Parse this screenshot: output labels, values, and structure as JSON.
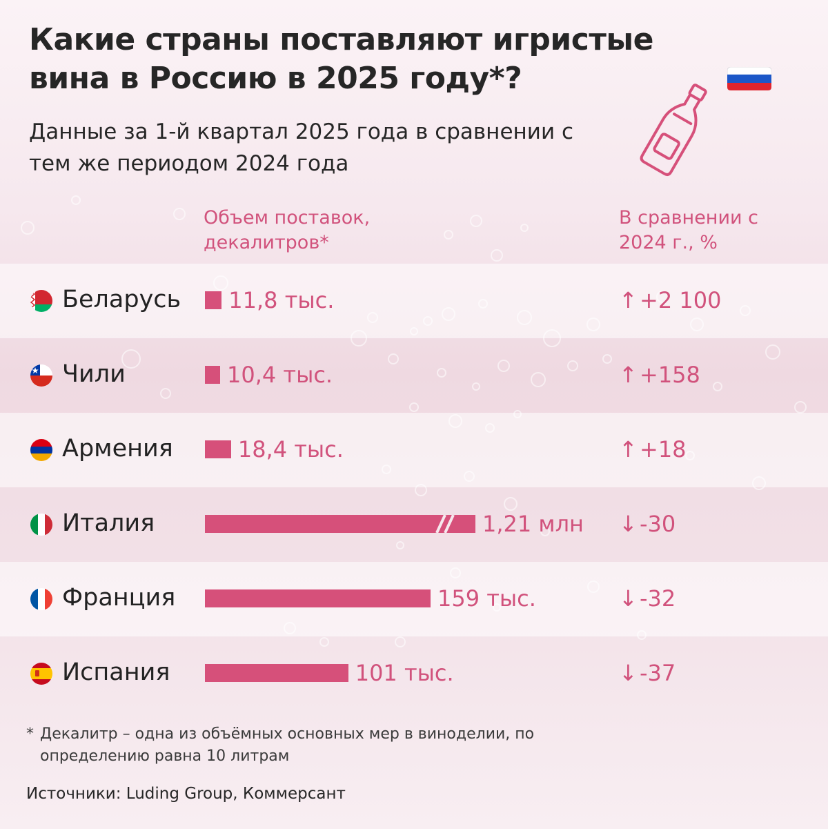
{
  "title": "Какие страны поставляют игристые вина в Россию в 2025 году*?",
  "subtitle": "Данные за 1-й квартал 2025 года в сравнении с тем же периодом 2024 года",
  "column_volume": "Объем поставок, декалитров*",
  "column_compare": "В сравнении с 2024 г., %",
  "colors": {
    "accent": "#d6507a",
    "accent_text": "#d1527c",
    "text": "#262626"
  },
  "chart_data": {
    "type": "bar",
    "orientation": "horizontal",
    "title": "Какие страны поставляют игристые вина в Россию в 2025 году*?",
    "xlabel": "Объем поставок, декалитров*",
    "ylabel": "",
    "unit": "декалитров",
    "axis_break": "Италия bar is truncated (shown with break marks)",
    "categories": [
      "Беларусь",
      "Чили",
      "Армения",
      "Италия",
      "Франция",
      "Испания"
    ],
    "values": [
      11800,
      10400,
      18400,
      1210000,
      159000,
      101000
    ],
    "value_labels": [
      "11,8 тыс.",
      "10,4 тыс.",
      "18,4 тыс.",
      "1,21 млн",
      "159 тыс.",
      "101 тыс."
    ],
    "change_percent": [
      2100,
      158,
      18,
      -30,
      -32,
      -37
    ],
    "change_labels": [
      "+2 100",
      "+158",
      "+18",
      "-30",
      "-32",
      "-37"
    ],
    "change_arrows": [
      "↑",
      "↑",
      "↑",
      "↓",
      "↓",
      "↓"
    ]
  },
  "footnote_star": "*",
  "footnote": "Декалитр – одна из объёмных основных мер в виноделии, по определению равна 10 литрам",
  "source": "Источники: Luding Group, Коммерсант",
  "icons": {
    "russia_flag": "russia-flag-icon",
    "bottle": "champagne-bottle-icon"
  }
}
